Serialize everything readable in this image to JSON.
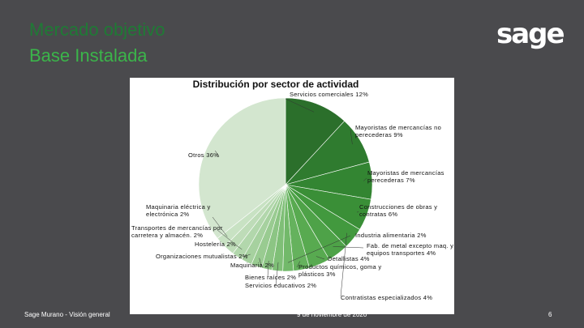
{
  "slide": {
    "title_line1": "Mercado objetivo",
    "title_line2": "Base Instalada",
    "logo_text": "sage",
    "footer_left": "Sage Murano - Visión general",
    "footer_center": "9 de noviembre de 2020",
    "page_number": "6"
  },
  "chart_data": {
    "type": "pie",
    "title": "Distribución por sector de actividad",
    "slices": [
      {
        "label": "Servicios comerciales 12%",
        "value": 12,
        "color": "#2b6f2b"
      },
      {
        "label": "Mayoristas de mercancías no perecederas 9%",
        "value": 9,
        "color": "#2f7b2f"
      },
      {
        "label": "Mayoristas de mercancías perecederas 7%",
        "value": 7,
        "color": "#338532"
      },
      {
        "label": "Construcciones de obras y contratas 6%",
        "value": 6,
        "color": "#3a8f37"
      },
      {
        "label": "Contratistas especializados 4%",
        "value": 4,
        "color": "#42993e"
      },
      {
        "label": "Fab. de metal excepto maq. y equipos transportes 4%",
        "value": 4,
        "color": "#4ea248"
      },
      {
        "label": "Detallistas 4%",
        "value": 4,
        "color": "#58aa50"
      },
      {
        "label": "Productos químicos, goma y plásticos 3%",
        "value": 3,
        "color": "#65b25d"
      },
      {
        "label": "Industria alimentaria 2%",
        "value": 2,
        "color": "#72b96a"
      },
      {
        "label": "Servicios educativos 2%",
        "value": 2,
        "color": "#7fbf77"
      },
      {
        "label": "Bienes raíces 2%",
        "value": 2,
        "color": "#8cc584"
      },
      {
        "label": "Maquinaria 2%",
        "value": 2,
        "color": "#99cb91"
      },
      {
        "label": "Organizaciones mutualistas 2%",
        "value": 2,
        "color": "#a6d19f"
      },
      {
        "label": "Hostelería 2%",
        "value": 2,
        "color": "#b2d7ac"
      },
      {
        "label": "Transportes de mercancías por carretera y almacén. 2%",
        "value": 2,
        "color": "#bedcb8"
      },
      {
        "label": "Maquinaria eléctrica y electrónica 2%",
        "value": 2,
        "color": "#c8e2c3"
      },
      {
        "label": "Otros 36%",
        "value": 36,
        "color": "#d3e6cf"
      }
    ]
  }
}
